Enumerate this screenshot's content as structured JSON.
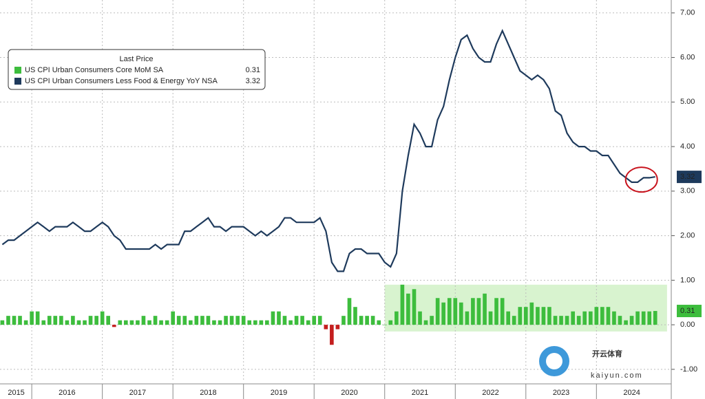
{
  "chart_data": {
    "type": "bar-line",
    "legend_title": "Last Price",
    "watermark": "开云体育",
    "watermark_sub": "kaiyun.com",
    "x": [
      2015.583,
      2015.667,
      2015.75,
      2015.833,
      2015.917,
      2016.0,
      2016.083,
      2016.167,
      2016.25,
      2016.333,
      2016.417,
      2016.5,
      2016.583,
      2016.667,
      2016.75,
      2016.833,
      2016.917,
      2017.0,
      2017.083,
      2017.167,
      2017.25,
      2017.333,
      2017.417,
      2017.5,
      2017.583,
      2017.667,
      2017.75,
      2017.833,
      2017.917,
      2018.0,
      2018.083,
      2018.167,
      2018.25,
      2018.333,
      2018.417,
      2018.5,
      2018.583,
      2018.667,
      2018.75,
      2018.833,
      2018.917,
      2019.0,
      2019.083,
      2019.167,
      2019.25,
      2019.333,
      2019.417,
      2019.5,
      2019.583,
      2019.667,
      2019.75,
      2019.833,
      2019.917,
      2020.0,
      2020.083,
      2020.167,
      2020.25,
      2020.333,
      2020.417,
      2020.5,
      2020.583,
      2020.667,
      2020.75,
      2020.833,
      2020.917,
      2021.0,
      2021.083,
      2021.167,
      2021.25,
      2021.333,
      2021.417,
      2021.5,
      2021.583,
      2021.667,
      2021.75,
      2021.833,
      2021.917,
      2022.0,
      2022.083,
      2022.167,
      2022.25,
      2022.333,
      2022.417,
      2022.5,
      2022.583,
      2022.667,
      2022.75,
      2022.833,
      2022.917,
      2023.0,
      2023.083,
      2023.167,
      2023.25,
      2023.333,
      2023.417,
      2023.5,
      2023.583,
      2023.667,
      2023.75,
      2023.833,
      2023.917,
      2024.0,
      2024.083,
      2024.167,
      2024.25,
      2024.333,
      2024.417,
      2024.5,
      2024.583,
      2024.667,
      2024.75,
      2024.833
    ],
    "series": [
      {
        "name": "US CPI Urban Consumers Core MoM SA",
        "type": "bar",
        "color": "#3dbd3d",
        "negative_color": "#c41e1e",
        "values": [
          0.1,
          0.2,
          0.2,
          0.2,
          0.1,
          0.3,
          0.3,
          0.1,
          0.2,
          0.2,
          0.2,
          0.1,
          0.2,
          0.1,
          0.1,
          0.2,
          0.2,
          0.3,
          0.2,
          -0.05,
          0.1,
          0.1,
          0.1,
          0.1,
          0.2,
          0.1,
          0.2,
          0.1,
          0.1,
          0.3,
          0.2,
          0.2,
          0.1,
          0.2,
          0.2,
          0.2,
          0.1,
          0.1,
          0.2,
          0.2,
          0.2,
          0.2,
          0.1,
          0.1,
          0.1,
          0.1,
          0.3,
          0.3,
          0.2,
          0.1,
          0.2,
          0.2,
          0.1,
          0.2,
          0.2,
          -0.1,
          -0.45,
          -0.1,
          0.2,
          0.6,
          0.4,
          0.2,
          0.2,
          0.2,
          0.1,
          0.0,
          0.1,
          0.3,
          0.9,
          0.7,
          0.8,
          0.3,
          0.1,
          0.2,
          0.6,
          0.5,
          0.6,
          0.6,
          0.5,
          0.3,
          0.6,
          0.6,
          0.7,
          0.3,
          0.6,
          0.6,
          0.3,
          0.2,
          0.4,
          0.4,
          0.5,
          0.4,
          0.4,
          0.4,
          0.2,
          0.2,
          0.2,
          0.3,
          0.2,
          0.3,
          0.3,
          0.4,
          0.4,
          0.4,
          0.3,
          0.2,
          0.1,
          0.2,
          0.3,
          0.3,
          0.3,
          0.31
        ]
      },
      {
        "name": "US CPI Urban Consumers Less Food & Energy YoY NSA",
        "type": "line",
        "color": "#1e3a5c",
        "values": [
          1.8,
          1.9,
          1.9,
          2.0,
          2.1,
          2.2,
          2.3,
          2.2,
          2.1,
          2.2,
          2.2,
          2.2,
          2.3,
          2.2,
          2.1,
          2.1,
          2.2,
          2.3,
          2.2,
          2.0,
          1.9,
          1.7,
          1.7,
          1.7,
          1.7,
          1.7,
          1.8,
          1.7,
          1.8,
          1.8,
          1.8,
          2.1,
          2.1,
          2.2,
          2.3,
          2.4,
          2.2,
          2.2,
          2.1,
          2.2,
          2.2,
          2.2,
          2.1,
          2.0,
          2.1,
          2.0,
          2.1,
          2.2,
          2.4,
          2.4,
          2.3,
          2.3,
          2.3,
          2.3,
          2.4,
          2.1,
          1.4,
          1.2,
          1.2,
          1.6,
          1.7,
          1.7,
          1.6,
          1.6,
          1.6,
          1.4,
          1.3,
          1.6,
          3.0,
          3.8,
          4.5,
          4.3,
          4.0,
          4.0,
          4.6,
          4.9,
          5.5,
          6.0,
          6.4,
          6.5,
          6.2,
          6.0,
          5.9,
          5.9,
          6.3,
          6.6,
          6.3,
          6.0,
          5.7,
          5.6,
          5.5,
          5.6,
          5.5,
          5.3,
          4.8,
          4.7,
          4.3,
          4.1,
          4.0,
          4.0,
          3.9,
          3.9,
          3.8,
          3.8,
          3.6,
          3.4,
          3.3,
          3.2,
          3.2,
          3.3,
          3.3,
          3.32
        ]
      }
    ],
    "highlight": {
      "x": [
        2021.0,
        2025.0
      ],
      "y": [
        -0.15,
        0.9
      ],
      "color": "#d8f3cf"
    },
    "xlim": [
      2015.55,
      2025.06
    ],
    "xticks": [
      2016,
      2017,
      2018,
      2019,
      2020,
      2021,
      2022,
      2023,
      2024
    ],
    "xtick_labels": [
      {
        "value": 2015.78,
        "label": "2015"
      },
      {
        "value": 2016.5,
        "label": "2016"
      },
      {
        "value": 2017.5,
        "label": "2017"
      },
      {
        "value": 2018.5,
        "label": "2018"
      },
      {
        "value": 2019.5,
        "label": "2019"
      },
      {
        "value": 2020.5,
        "label": "2020"
      },
      {
        "value": 2021.5,
        "label": "2021"
      },
      {
        "value": 2022.5,
        "label": "2022"
      },
      {
        "value": 2023.5,
        "label": "2023"
      },
      {
        "value": 2024.5,
        "label": "2024"
      }
    ],
    "ylim": [
      -1.28,
      7.29
    ],
    "yticks": [
      {
        "value": 7,
        "label": "7.00"
      },
      {
        "value": 6,
        "label": "6.00"
      },
      {
        "value": 5,
        "label": "5.00"
      },
      {
        "value": 4,
        "label": "4.00"
      },
      {
        "value": 3,
        "label": "3.00"
      },
      {
        "value": 2,
        "label": "2.00"
      },
      {
        "value": 1,
        "label": "1.00"
      },
      {
        "value": 0,
        "label": "0.00"
      },
      {
        "value": -1,
        "label": "-1.00"
      }
    ],
    "grid": true
  }
}
